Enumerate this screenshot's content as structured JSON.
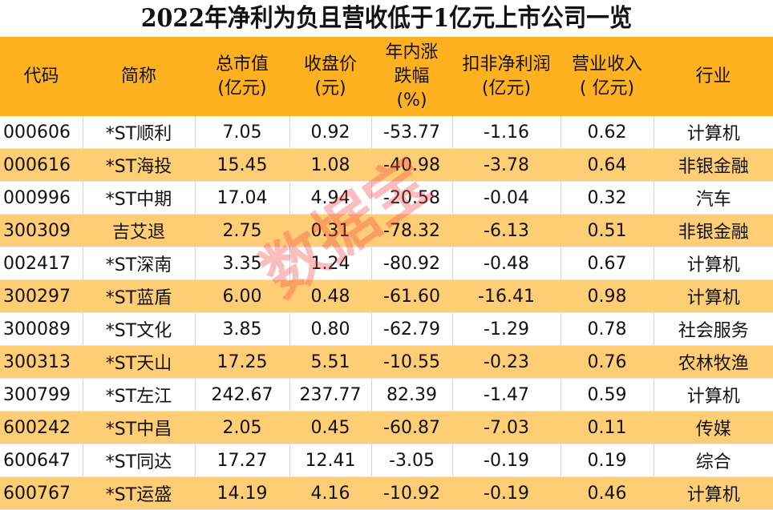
{
  "title": "2022年净利为负且营收低于1亿元上市公司一览",
  "headers": [
    "代码",
    "简称",
    "总市值\n(亿元)",
    "收盘价\n(元)",
    "年内涨\n跌幅\n(%)",
    "扣非净利润\n(亿元)",
    "营业收入\n( 亿元)",
    "行业"
  ],
  "rows": [
    [
      "000606",
      "*ST顺利",
      "7.05",
      "0.92",
      "-53.77",
      "-1.16",
      "0.62",
      "计算机"
    ],
    [
      "000616",
      "*ST海投",
      "15.45",
      "1.08",
      "-40.98",
      "-3.78",
      "0.64",
      "非银金融"
    ],
    [
      "000996",
      "*ST中期",
      "17.04",
      "4.94",
      "-20.58",
      "-0.04",
      "0.32",
      "汽车"
    ],
    [
      "300309",
      "吉艾退",
      "2.75",
      "0.31",
      "-78.32",
      "-6.13",
      "0.51",
      "非银金融"
    ],
    [
      "002417",
      "*ST深南",
      "3.35",
      "1.24",
      "-80.92",
      "-0.48",
      "0.67",
      "计算机"
    ],
    [
      "300297",
      "*ST蓝盾",
      "6.00",
      "0.48",
      "-61.60",
      "-16.41",
      "0.98",
      "计算机"
    ],
    [
      "300089",
      "*ST文化",
      "3.85",
      "0.80",
      "-62.79",
      "-1.29",
      "0.78",
      "社会服务"
    ],
    [
      "300313",
      "*ST天山",
      "17.25",
      "5.51",
      "-10.55",
      "-0.23",
      "0.76",
      "农林牧渔"
    ],
    [
      "300799",
      "*ST左江",
      "242.67",
      "237.77",
      "82.39",
      "-1.47",
      "0.59",
      "计算机"
    ],
    [
      "600242",
      "*ST中昌",
      "2.05",
      "0.45",
      "-60.87",
      "-7.03",
      "0.11",
      "传媒"
    ],
    [
      "600647",
      "*ST同达",
      "17.27",
      "12.41",
      "-3.05",
      "-0.19",
      "0.19",
      "综合"
    ],
    [
      "600767",
      "*ST运盛",
      "14.19",
      "4.16",
      "-10.92",
      "-0.19",
      "0.46",
      "计算机"
    ]
  ],
  "watermark": "数据宝",
  "colors": {
    "header": "#FFB11F",
    "alt_row": "#FFCE74",
    "watermark": "#F04646"
  }
}
